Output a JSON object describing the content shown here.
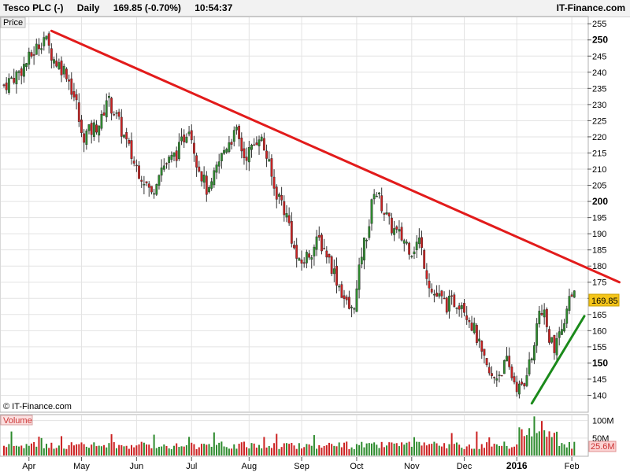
{
  "header": {
    "instrument": "Tesco PLC (-)",
    "period": "Daily",
    "quote": "169.85 (-0.70%)",
    "time": "10:54:37",
    "brand": "IT-Finance.com"
  },
  "panels": {
    "price_label": "Price",
    "volume_label": "Volume",
    "copyright": "© IT-Finance.com"
  },
  "colors": {
    "up": "#2e8b2e",
    "down": "#cc2222",
    "trend_resistance": "#e21b1b",
    "trend_support": "#1a8a1a",
    "grid": "#e3e3e3",
    "last_price_bg": "#f5c518",
    "volume_last_bg": "#fbd3d3"
  },
  "chart_data": {
    "type": "candlestick",
    "title": "Tesco PLC (-)",
    "last_price": 169.85,
    "last_price_label": "169.85",
    "last_volume_label": "25.6M",
    "ylim": [
      135,
      257
    ],
    "yticks": [
      140,
      145,
      150,
      155,
      160,
      165,
      170,
      175,
      180,
      185,
      190,
      195,
      200,
      205,
      210,
      215,
      220,
      225,
      230,
      235,
      240,
      245,
      250,
      255
    ],
    "ytick_labels": [
      "140",
      "145",
      "150",
      "155",
      "160",
      "165",
      "170",
      "175",
      "180",
      "185",
      "190",
      "195",
      "200",
      "205",
      "210",
      "215",
      "220",
      "225",
      "230",
      "235",
      "240",
      "245",
      "250",
      "255"
    ],
    "volume_ticks": [
      {
        "value": 50,
        "label": "50M"
      },
      {
        "value": 100,
        "label": "100M"
      }
    ],
    "volume_max": 115,
    "month_labels": [
      {
        "label": "Apr",
        "day": 10
      },
      {
        "label": "May",
        "day": 31
      },
      {
        "label": "Jun",
        "day": 53
      },
      {
        "label": "Jul",
        "day": 75
      },
      {
        "label": "Aug",
        "day": 98
      },
      {
        "label": "Sep",
        "day": 119
      },
      {
        "label": "Oct",
        "day": 141
      },
      {
        "label": "Nov",
        "day": 163
      },
      {
        "label": "Dec",
        "day": 184
      },
      {
        "label": "2016",
        "day": 205
      },
      {
        "label": "Feb",
        "day": 227
      }
    ],
    "num_days": 232,
    "price_path": [
      [
        0,
        236
      ],
      [
        6,
        240
      ],
      [
        10,
        244
      ],
      [
        16,
        251
      ],
      [
        20,
        244
      ],
      [
        25,
        240
      ],
      [
        29,
        230
      ],
      [
        31,
        220
      ],
      [
        35,
        222
      ],
      [
        39,
        225
      ],
      [
        41,
        232
      ],
      [
        44,
        228
      ],
      [
        47,
        222
      ],
      [
        52,
        212
      ],
      [
        56,
        207
      ],
      [
        59,
        202
      ],
      [
        62,
        210
      ],
      [
        67,
        213
      ],
      [
        70,
        216
      ],
      [
        72,
        220
      ],
      [
        74,
        224
      ],
      [
        77,
        213
      ],
      [
        80,
        206
      ],
      [
        82,
        202
      ],
      [
        85,
        210
      ],
      [
        88,
        216
      ],
      [
        90,
        219
      ],
      [
        93,
        221
      ],
      [
        96,
        214
      ],
      [
        99,
        216
      ],
      [
        102,
        221
      ],
      [
        105,
        214
      ],
      [
        108,
        204
      ],
      [
        111,
        200
      ],
      [
        114,
        193
      ],
      [
        116,
        185
      ],
      [
        118,
        180
      ],
      [
        121,
        183
      ],
      [
        124,
        186
      ],
      [
        126,
        188
      ],
      [
        129,
        184
      ],
      [
        131,
        180
      ],
      [
        134,
        174
      ],
      [
        137,
        168
      ],
      [
        139,
        166
      ],
      [
        141,
        172
      ],
      [
        143,
        184
      ],
      [
        146,
        193
      ],
      [
        148,
        204
      ],
      [
        151,
        199
      ],
      [
        154,
        193
      ],
      [
        157,
        190
      ],
      [
        160,
        188
      ],
      [
        163,
        185
      ],
      [
        166,
        188
      ],
      [
        169,
        178
      ],
      [
        171,
        172
      ],
      [
        174,
        170
      ],
      [
        177,
        168
      ],
      [
        180,
        169
      ],
      [
        183,
        169
      ],
      [
        186,
        164
      ],
      [
        189,
        158
      ],
      [
        191,
        152
      ],
      [
        193,
        148
      ],
      [
        195,
        145
      ],
      [
        198,
        147
      ],
      [
        201,
        150
      ],
      [
        203,
        146
      ],
      [
        205,
        143
      ],
      [
        207,
        141
      ],
      [
        209,
        146
      ],
      [
        211,
        152
      ],
      [
        213,
        160
      ],
      [
        214,
        168
      ],
      [
        216,
        164
      ],
      [
        218,
        158
      ],
      [
        220,
        153
      ],
      [
        222,
        158
      ],
      [
        224,
        164
      ],
      [
        226,
        170
      ],
      [
        227,
        173
      ],
      [
        228,
        170
      ]
    ],
    "trendlines": [
      {
        "name": "resistance",
        "from": {
          "day": 19,
          "value": 252.8
        },
        "to": {
          "day": 246,
          "value": 175
        }
      },
      {
        "name": "support",
        "from": {
          "day": 211,
          "value": 137.5
        },
        "to": {
          "day": 232,
          "value": 164.5
        }
      }
    ]
  }
}
